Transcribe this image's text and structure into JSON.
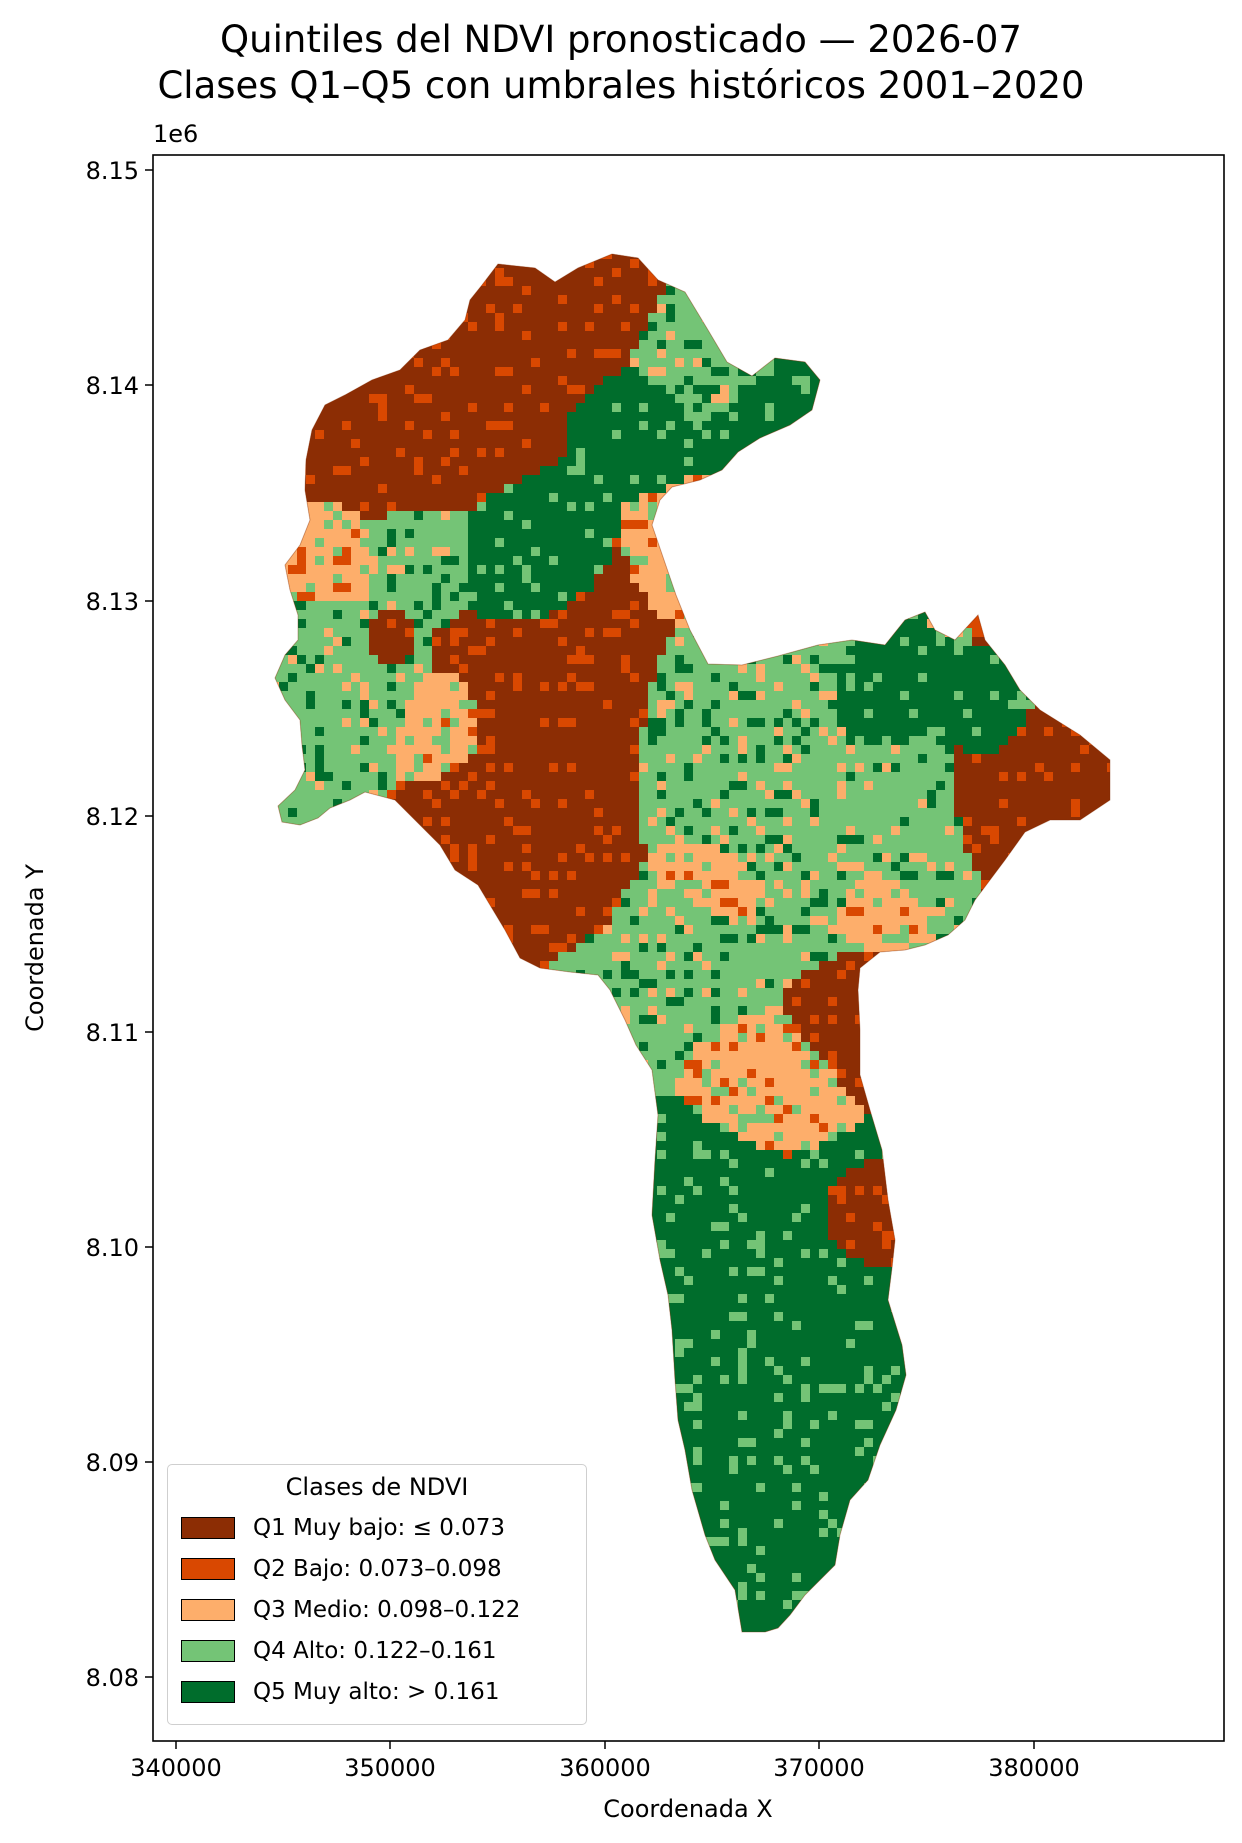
{
  "title": {
    "line1": "Quintiles del NDVI pronosticado — 2026-07",
    "line2": "Clases Q1–Q5 con umbrales históricos 2001–2020"
  },
  "axes": {
    "xlabel": "Coordenada X",
    "ylabel": "Coordenada Y",
    "y_offset_label": "1e6",
    "x_ticks": [
      "340000",
      "350000",
      "360000",
      "370000",
      "380000"
    ],
    "y_ticks": [
      "8.08",
      "8.09",
      "8.10",
      "8.11",
      "8.12",
      "8.13",
      "8.14",
      "8.15"
    ]
  },
  "legend": {
    "title": "Clases de NDVI",
    "items": [
      {
        "label": "Q1 Muy bajo: ≤ 0.073",
        "color": "#8c2d04"
      },
      {
        "label": "Q2 Bajo: 0.073–0.098",
        "color": "#d94801"
      },
      {
        "label": "Q3 Medio: 0.098–0.122",
        "color": "#fdae6b"
      },
      {
        "label": "Q4 Alto: 0.122–0.161",
        "color": "#74c476"
      },
      {
        "label": "Q5 Muy alto: > 0.161",
        "color": "#006d2c"
      }
    ]
  },
  "map": {
    "type": "categorical raster",
    "xlim": [
      339500,
      388500
    ],
    "ylim": [
      8077000,
      8151000
    ],
    "classes": [
      "Q1",
      "Q2",
      "Q3",
      "Q4",
      "Q5"
    ]
  }
}
